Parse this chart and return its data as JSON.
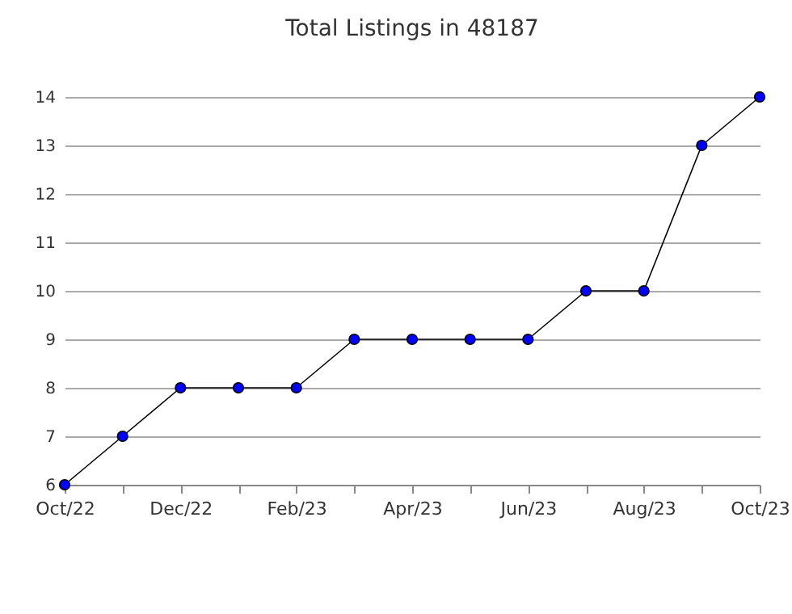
{
  "chart_data": {
    "type": "line",
    "title": "Total Listings in 48187",
    "categories": [
      "Oct/22",
      null,
      "Dec/22",
      null,
      "Feb/23",
      null,
      "Apr/23",
      null,
      "Jun/23",
      null,
      "Aug/23",
      null,
      "Oct/23"
    ],
    "series": [
      {
        "color": "#0000ff",
        "values": [
          6,
          7,
          8,
          8,
          8,
          9,
          9,
          9,
          9,
          10,
          10,
          13,
          14
        ]
      }
    ],
    "ylim": [
      6,
      14
    ],
    "yticks": [
      6,
      7,
      8,
      9,
      10,
      11,
      12,
      13,
      14
    ],
    "grid": "y",
    "marker": "circle",
    "line_style": "solid"
  }
}
